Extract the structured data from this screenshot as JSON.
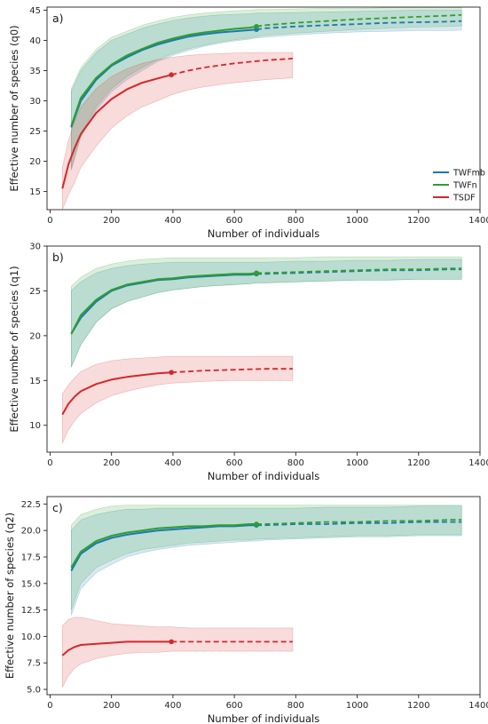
{
  "chart_data": [
    {
      "type": "line",
      "panel_label": "a)",
      "xlabel": "Number of individuals",
      "ylabel": "Effective number of species (q0)",
      "xlim": [
        -10,
        1400
      ],
      "ylim": [
        12,
        45.5
      ],
      "xticks": [
        0,
        200,
        400,
        600,
        800,
        1000,
        1200,
        1400
      ],
      "yticks": [
        15,
        20,
        25,
        30,
        35,
        40,
        45
      ],
      "legend": {
        "position": "lower-right"
      },
      "series": [
        {
          "name": "TWFmb",
          "color": "#1f77b4",
          "x": [
            69,
            100,
            150,
            200,
            250,
            300,
            350,
            400,
            450,
            500,
            550,
            600,
            650,
            672,
            700,
            800,
            900,
            1000,
            1100,
            1200,
            1300,
            1340
          ],
          "y": [
            25.6,
            30.0,
            33.5,
            35.8,
            37.2,
            38.4,
            39.3,
            40.0,
            40.6,
            41.0,
            41.3,
            41.5,
            41.7,
            41.8,
            42.0,
            42.3,
            42.5,
            42.7,
            42.9,
            43.0,
            43.1,
            43.2
          ],
          "lower": [
            18.5,
            24.0,
            28.5,
            31.5,
            33.5,
            35.0,
            36.5,
            37.5,
            38.3,
            39.0,
            39.5,
            39.9,
            40.2,
            40.4,
            40.5,
            40.9,
            41.2,
            41.4,
            41.5,
            41.6,
            41.6,
            41.7
          ],
          "upper": [
            31.5,
            35.0,
            38.0,
            40.0,
            41.0,
            42.0,
            42.7,
            43.3,
            43.7,
            44.0,
            44.2,
            44.3,
            44.4,
            44.5,
            44.5,
            44.6,
            44.7,
            44.8,
            44.9,
            45.0,
            45.0,
            45.0
          ],
          "observed_point": [
            672,
            41.8
          ]
        },
        {
          "name": "TWFn",
          "color": "#2ca02c",
          "x": [
            69,
            100,
            150,
            200,
            250,
            300,
            350,
            400,
            450,
            500,
            550,
            600,
            650,
            672,
            700,
            800,
            900,
            1000,
            1100,
            1200,
            1300,
            1340
          ],
          "y": [
            25.8,
            30.5,
            33.8,
            36.0,
            37.5,
            38.6,
            39.6,
            40.3,
            40.9,
            41.3,
            41.6,
            41.9,
            42.1,
            42.3,
            42.5,
            42.9,
            43.2,
            43.5,
            43.7,
            43.9,
            44.1,
            44.2
          ],
          "lower": [
            18.8,
            24.5,
            29.0,
            32.0,
            34.0,
            35.5,
            36.8,
            37.8,
            38.6,
            39.2,
            39.7,
            40.1,
            40.4,
            40.6,
            40.8,
            41.2,
            41.5,
            41.8,
            42.0,
            42.2,
            42.3,
            42.4
          ],
          "upper": [
            32.0,
            35.5,
            38.5,
            40.5,
            41.5,
            42.5,
            43.2,
            43.8,
            44.2,
            44.5,
            44.7,
            44.9,
            45.0,
            45.1,
            45.1,
            45.2,
            45.3,
            45.3,
            45.4,
            45.4,
            45.4,
            45.4
          ],
          "observed_point": [
            672,
            42.3
          ]
        },
        {
          "name": "TSDF",
          "color": "#d62728",
          "x": [
            40,
            60,
            80,
            100,
            150,
            200,
            250,
            300,
            350,
            395,
            450,
            500,
            600,
            700,
            790
          ],
          "y": [
            15.5,
            19.5,
            22.2,
            24.5,
            28.0,
            30.3,
            31.9,
            33.0,
            33.7,
            34.3,
            35.0,
            35.5,
            36.2,
            36.7,
            37.0
          ],
          "lower": [
            12.0,
            14.5,
            16.5,
            19.0,
            22.5,
            25.5,
            27.5,
            29.0,
            30.0,
            31.0,
            31.8,
            32.3,
            33.0,
            33.5,
            33.8
          ],
          "upper": [
            19.0,
            23.5,
            26.5,
            29.0,
            32.0,
            34.0,
            35.3,
            36.2,
            36.8,
            37.2,
            37.5,
            37.7,
            37.9,
            38.0,
            38.0
          ],
          "observed_point": [
            395,
            34.3
          ]
        }
      ]
    },
    {
      "type": "line",
      "panel_label": "b)",
      "xlabel": "Number of individuals",
      "ylabel": "Effective number of species (q1)",
      "xlim": [
        -10,
        1400
      ],
      "ylim": [
        7,
        30
      ],
      "xticks": [
        0,
        200,
        400,
        600,
        800,
        1000,
        1200,
        1400
      ],
      "yticks": [
        10,
        15,
        20,
        25,
        30
      ],
      "series": [
        {
          "name": "TWFmb",
          "color": "#1f77b4",
          "x": [
            69,
            100,
            150,
            200,
            250,
            300,
            350,
            400,
            450,
            500,
            550,
            600,
            650,
            672,
            700,
            800,
            900,
            1000,
            1100,
            1200,
            1300,
            1340
          ],
          "y": [
            20.2,
            22.0,
            23.8,
            25.0,
            25.6,
            25.9,
            26.2,
            26.3,
            26.5,
            26.6,
            26.7,
            26.8,
            26.8,
            26.9,
            26.9,
            27.0,
            27.1,
            27.2,
            27.3,
            27.3,
            27.4,
            27.4
          ],
          "lower": [
            16.5,
            19.0,
            21.5,
            23.0,
            23.8,
            24.3,
            24.8,
            25.1,
            25.3,
            25.5,
            25.6,
            25.7,
            25.8,
            25.9,
            25.9,
            26.0,
            26.1,
            26.2,
            26.2,
            26.3,
            26.3,
            26.3
          ],
          "upper": [
            25.0,
            26.0,
            27.0,
            27.5,
            27.8,
            28.0,
            28.1,
            28.2,
            28.2,
            28.2,
            28.2,
            28.2,
            28.2,
            28.2,
            28.2,
            28.3,
            28.3,
            28.4,
            28.4,
            28.5,
            28.5,
            28.5
          ],
          "observed_point": [
            672,
            26.9
          ]
        },
        {
          "name": "TWFn",
          "color": "#2ca02c",
          "x": [
            69,
            100,
            150,
            200,
            250,
            300,
            350,
            400,
            450,
            500,
            550,
            600,
            650,
            672,
            700,
            800,
            900,
            1000,
            1100,
            1200,
            1300,
            1340
          ],
          "y": [
            20.2,
            22.3,
            24.0,
            25.1,
            25.7,
            26.0,
            26.3,
            26.4,
            26.6,
            26.7,
            26.8,
            26.9,
            26.9,
            27.0,
            27.0,
            27.1,
            27.2,
            27.3,
            27.4,
            27.4,
            27.5,
            27.5
          ],
          "lower": [
            16.5,
            19.0,
            21.5,
            23.0,
            23.8,
            24.3,
            24.8,
            25.1,
            25.3,
            25.5,
            25.6,
            25.7,
            25.8,
            25.9,
            25.9,
            26.0,
            26.1,
            26.2,
            26.2,
            26.3,
            26.3,
            26.3
          ],
          "upper": [
            25.5,
            26.5,
            27.5,
            28.0,
            28.3,
            28.5,
            28.6,
            28.7,
            28.7,
            28.7,
            28.7,
            28.7,
            28.7,
            28.7,
            28.7,
            28.7,
            28.8,
            28.8,
            28.8,
            28.8,
            28.8,
            28.8
          ],
          "observed_point": [
            672,
            27.0
          ]
        },
        {
          "name": "TSDF",
          "color": "#d62728",
          "x": [
            40,
            60,
            80,
            100,
            150,
            200,
            250,
            300,
            350,
            395,
            450,
            500,
            600,
            700,
            790
          ],
          "y": [
            11.2,
            12.4,
            13.2,
            13.8,
            14.6,
            15.1,
            15.4,
            15.6,
            15.8,
            15.9,
            16.0,
            16.1,
            16.2,
            16.3,
            16.3
          ],
          "lower": [
            8.0,
            9.5,
            10.5,
            11.3,
            12.5,
            13.3,
            13.8,
            14.2,
            14.5,
            14.7,
            14.8,
            14.9,
            15.0,
            15.0,
            15.0
          ],
          "upper": [
            13.5,
            14.5,
            15.3,
            16.0,
            16.8,
            17.2,
            17.4,
            17.5,
            17.6,
            17.7,
            17.7,
            17.7,
            17.7,
            17.7,
            17.7
          ],
          "observed_point": [
            395,
            15.9
          ]
        }
      ]
    },
    {
      "type": "line",
      "panel_label": "c)",
      "xlabel": "Number of individuals",
      "ylabel": "Effective number of species (q2)",
      "xlim": [
        -10,
        1400
      ],
      "ylim": [
        4.5,
        23.2
      ],
      "xticks": [
        0,
        200,
        400,
        600,
        800,
        1000,
        1200,
        1400
      ],
      "yticks": [
        5.0,
        7.5,
        10.0,
        12.5,
        15.0,
        17.5,
        20.0,
        22.5
      ],
      "series": [
        {
          "name": "TWFmb",
          "color": "#1f77b4",
          "x": [
            69,
            100,
            150,
            200,
            250,
            300,
            350,
            400,
            450,
            500,
            550,
            600,
            650,
            672,
            700,
            800,
            900,
            1000,
            1100,
            1200,
            1300,
            1340
          ],
          "y": [
            16.2,
            17.8,
            18.8,
            19.3,
            19.6,
            19.8,
            20.0,
            20.1,
            20.2,
            20.3,
            20.4,
            20.4,
            20.5,
            20.5,
            20.5,
            20.6,
            20.6,
            20.7,
            20.7,
            20.8,
            20.8,
            20.8
          ],
          "lower": [
            12.0,
            14.5,
            16.0,
            16.8,
            17.5,
            17.9,
            18.2,
            18.4,
            18.6,
            18.7,
            18.8,
            18.9,
            19.0,
            19.0,
            19.1,
            19.2,
            19.3,
            19.4,
            19.4,
            19.5,
            19.5,
            19.5
          ],
          "upper": [
            20.0,
            21.0,
            21.5,
            21.8,
            22.0,
            22.0,
            22.1,
            22.1,
            22.1,
            22.1,
            22.1,
            22.1,
            22.1,
            22.1,
            22.1,
            22.1,
            22.2,
            22.2,
            22.2,
            22.3,
            22.3,
            22.3
          ],
          "observed_point": [
            672,
            20.5
          ]
        },
        {
          "name": "TWFn",
          "color": "#2ca02c",
          "x": [
            69,
            100,
            150,
            200,
            250,
            300,
            350,
            400,
            450,
            500,
            550,
            600,
            650,
            672,
            700,
            800,
            900,
            1000,
            1100,
            1200,
            1300,
            1340
          ],
          "y": [
            16.5,
            18.0,
            19.0,
            19.5,
            19.8,
            20.0,
            20.2,
            20.3,
            20.4,
            20.4,
            20.5,
            20.5,
            20.6,
            20.6,
            20.6,
            20.7,
            20.8,
            20.8,
            20.9,
            20.9,
            21.0,
            21.0
          ],
          "lower": [
            12.5,
            15.0,
            16.5,
            17.2,
            17.8,
            18.2,
            18.4,
            18.6,
            18.8,
            18.9,
            19.0,
            19.1,
            19.1,
            19.2,
            19.2,
            19.3,
            19.4,
            19.5,
            19.5,
            19.6,
            19.6,
            19.6
          ],
          "upper": [
            20.5,
            21.5,
            22.0,
            22.3,
            22.4,
            22.4,
            22.4,
            22.4,
            22.4,
            22.4,
            22.4,
            22.4,
            22.4,
            22.4,
            22.4,
            22.4,
            22.4,
            22.4,
            22.4,
            22.4,
            22.4,
            22.4
          ],
          "observed_point": [
            672,
            20.6
          ]
        },
        {
          "name": "TSDF",
          "color": "#d62728",
          "x": [
            40,
            60,
            80,
            100,
            150,
            200,
            250,
            300,
            350,
            395,
            450,
            500,
            600,
            700,
            790
          ],
          "y": [
            8.2,
            8.7,
            9.0,
            9.2,
            9.3,
            9.4,
            9.5,
            9.5,
            9.5,
            9.5,
            9.5,
            9.5,
            9.5,
            9.5,
            9.5
          ],
          "lower": [
            5.2,
            6.3,
            7.0,
            7.4,
            7.9,
            8.2,
            8.4,
            8.5,
            8.5,
            8.6,
            8.6,
            8.6,
            8.6,
            8.6,
            8.6
          ],
          "upper": [
            11.0,
            11.6,
            11.8,
            11.8,
            11.5,
            11.2,
            11.1,
            11.0,
            10.9,
            10.9,
            10.8,
            10.8,
            10.8,
            10.8,
            10.8
          ],
          "observed_point": [
            395,
            9.5
          ]
        }
      ]
    }
  ]
}
